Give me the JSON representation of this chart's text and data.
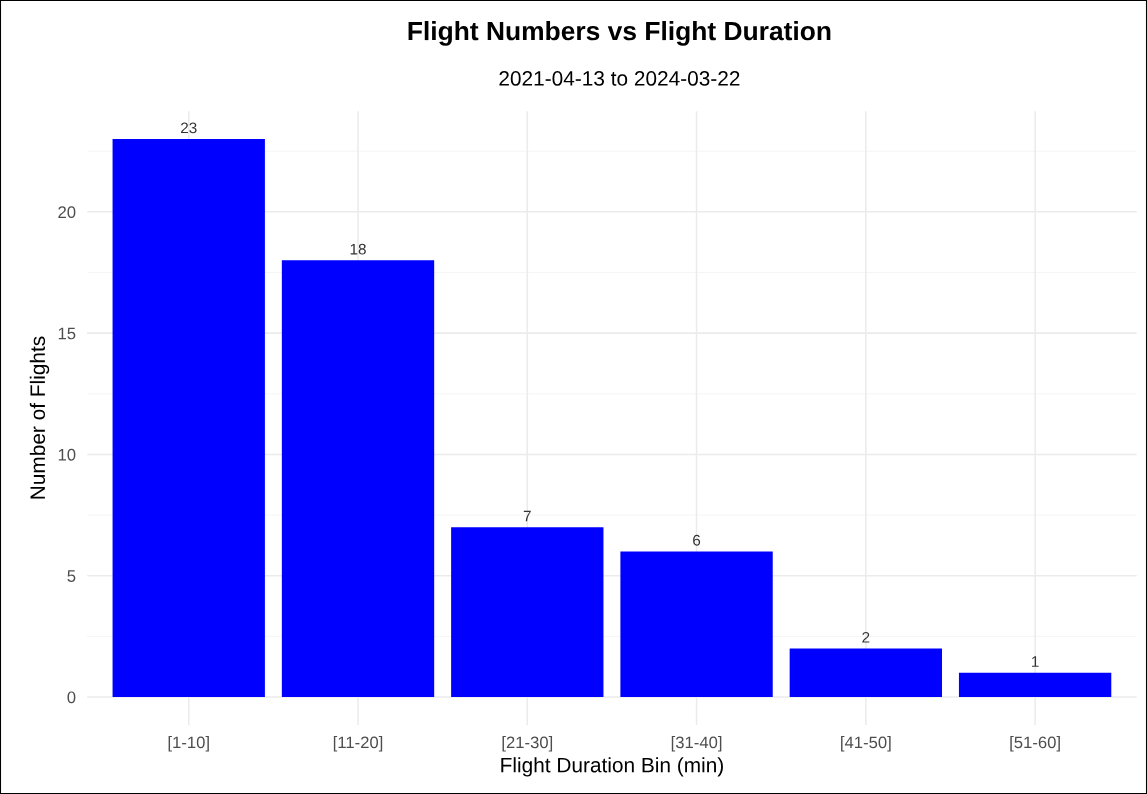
{
  "chart_data": {
    "type": "bar",
    "title": "Flight Numbers vs Flight Duration",
    "subtitle": "2021-04-13 to 2024-03-22",
    "xlabel": "Flight Duration Bin (min)",
    "ylabel": "Number of Flights",
    "categories": [
      "[1-10]",
      "[11-20]",
      "[21-30]",
      "[31-40]",
      "[41-50]",
      "[51-60]"
    ],
    "values": [
      23,
      18,
      7,
      6,
      2,
      1
    ],
    "color": "#0000ff",
    "ylim": [
      -1.15,
      24.15
    ],
    "yticks": [
      0,
      5,
      10,
      15,
      20
    ],
    "grid": true,
    "legend": false,
    "data_labels": true
  }
}
